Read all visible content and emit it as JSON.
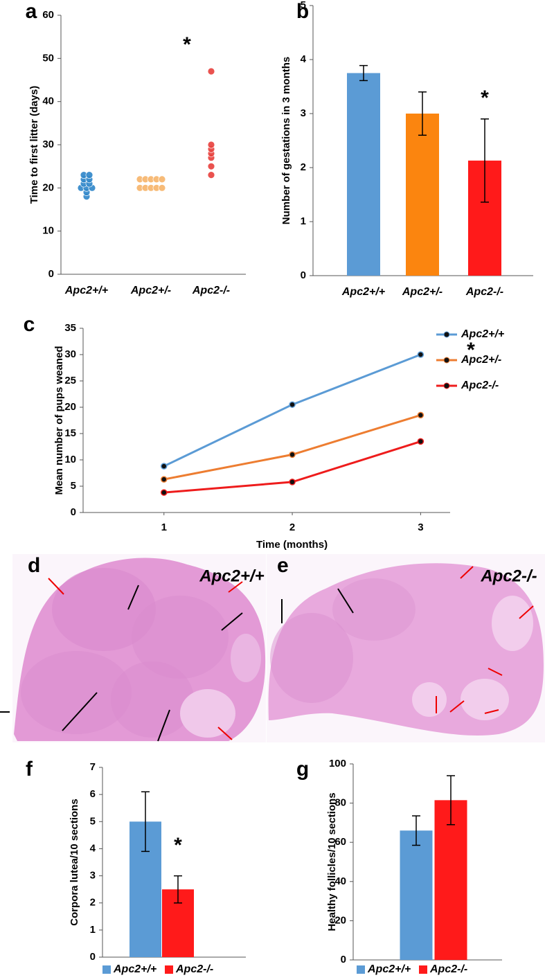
{
  "chart_data": [
    {
      "type": "strip",
      "panel": "a",
      "ylabel": "Time to first litter (days)",
      "categories": [
        "Apc2+/+",
        "Apc2+/-",
        "Apc2-/-"
      ],
      "values": [
        [
          18,
          19,
          20,
          20,
          20,
          21,
          21,
          22,
          22,
          23,
          23
        ],
        [
          20,
          20,
          20,
          20,
          20,
          22,
          22,
          22,
          22,
          22
        ],
        [
          23,
          25,
          27,
          28,
          29,
          30,
          47
        ]
      ],
      "colors": [
        "#2e86c9",
        "#f7b46a",
        "#e8403c"
      ],
      "ylim": [
        0,
        60
      ],
      "yticks": [
        0,
        10,
        20,
        30,
        40,
        50,
        60
      ],
      "annotation": "*"
    },
    {
      "type": "bar",
      "panel": "b",
      "ylabel": "Number of gestations in 3 months",
      "categories": [
        "Apc2+/+",
        "Apc2+/-",
        "Apc2-/-"
      ],
      "values": [
        3.75,
        3.0,
        2.13
      ],
      "errors": [
        0.14,
        0.4,
        0.77
      ],
      "colors": [
        "#5b9bd5",
        "#fb850f",
        "#ff1a1a"
      ],
      "ylim": [
        0,
        5
      ],
      "yticks": [
        0,
        1,
        2,
        3,
        4,
        5
      ],
      "annotation": "*"
    },
    {
      "type": "line",
      "panel": "c",
      "ylabel": "Mean number of pups weaned",
      "xlabel": "Time (months)",
      "x": [
        1,
        2,
        3
      ],
      "xlim": [
        0.37,
        3.23
      ],
      "xticks": [
        1,
        2,
        3
      ],
      "series": [
        {
          "name": "Apc2+/+",
          "color": "#5b9bd5",
          "values": [
            8.8,
            20.5,
            30
          ]
        },
        {
          "name": "Apc2+/-",
          "color": "#ed7d31",
          "values": [
            6.3,
            11,
            18.5
          ]
        },
        {
          "name": "Apc2-/-",
          "color": "#ee1c1c",
          "values": [
            3.8,
            5.8,
            13.5
          ]
        }
      ],
      "ylim": [
        0,
        35
      ],
      "yticks": [
        0,
        5,
        10,
        15,
        20,
        25,
        30,
        35
      ],
      "annotation": "*"
    },
    {
      "type": "bar",
      "panel": "f",
      "ylabel": "Corpora lutea/10 sections",
      "series": [
        {
          "name": "Apc2+/+",
          "color": "#5b9bd5",
          "values": [
            5.0
          ],
          "errors": [
            1.1
          ]
        },
        {
          "name": "Apc2-/-",
          "color": "#ff1a1a",
          "values": [
            2.5
          ],
          "errors": [
            0.5
          ]
        }
      ],
      "ylim": [
        0,
        7
      ],
      "yticks": [
        0,
        1,
        2,
        3,
        4,
        5,
        6,
        7
      ],
      "annotation": "*"
    },
    {
      "type": "bar",
      "panel": "g",
      "ylabel": "Healthy follicles/10 sections",
      "series": [
        {
          "name": "Apc2+/+",
          "color": "#5b9bd5",
          "values": [
            66
          ],
          "errors": [
            7.5
          ]
        },
        {
          "name": "Apc2-/-",
          "color": "#ff1a1a",
          "values": [
            81.5
          ],
          "errors": [
            12.5
          ]
        }
      ],
      "ylim": [
        0,
        100
      ],
      "yticks": [
        0,
        20,
        40,
        60,
        80,
        100
      ]
    }
  ],
  "images": [
    {
      "panel": "d",
      "caption": "Apc2+/+"
    },
    {
      "panel": "e",
      "caption": "Apc2-/-"
    }
  ]
}
